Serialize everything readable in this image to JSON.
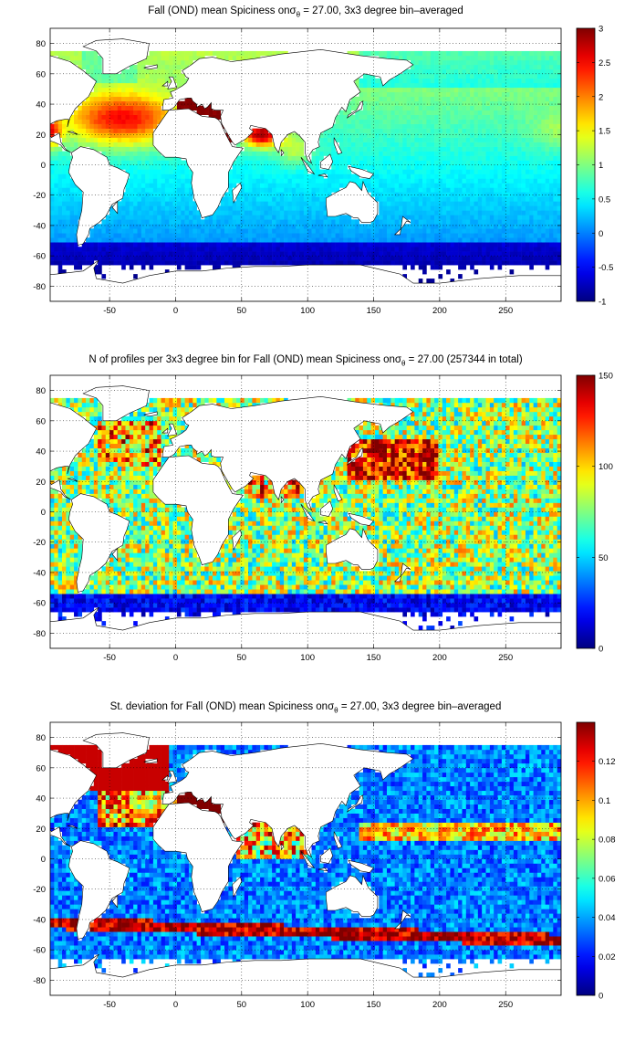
{
  "chart_data": [
    {
      "type": "heatmap",
      "title_prefix": "Fall (OND) mean Spiciness on",
      "title_sigma": "σ",
      "title_sub": "θ",
      "title_suffix": " = 27.00, 3x3 degree bin–averaged",
      "xticks": [
        -50,
        0,
        50,
        100,
        150,
        200,
        250
      ],
      "yticks": [
        80,
        60,
        40,
        20,
        0,
        -20,
        -40,
        -60,
        -80
      ],
      "xlim": [
        -95,
        292
      ],
      "ylim": [
        -90,
        90
      ],
      "colorbar_ticks": [
        3,
        2.5,
        2,
        1.5,
        1,
        0.5,
        0,
        -0.5,
        -1
      ],
      "colorbar_range": [
        -1,
        3
      ],
      "grid": true,
      "colormap": "jet",
      "field": "spice"
    },
    {
      "type": "heatmap",
      "title_prefix": "N of profiles per 3x3 degree bin for Fall (OND) mean Spiciness on",
      "title_sigma": "σ",
      "title_sub": "θ",
      "title_suffix": " = 27.00 (257344 in total)",
      "xticks": [
        -50,
        0,
        50,
        100,
        150,
        200,
        250
      ],
      "yticks": [
        80,
        60,
        40,
        20,
        0,
        -20,
        -40,
        -60,
        -80
      ],
      "xlim": [
        -95,
        292
      ],
      "ylim": [
        -90,
        90
      ],
      "colorbar_ticks": [
        150,
        100,
        50,
        0
      ],
      "colorbar_range": [
        0,
        150
      ],
      "grid": true,
      "colormap": "jet",
      "field": "count"
    },
    {
      "type": "heatmap",
      "title_prefix": "St. deviation for Fall (OND) mean Spiciness on",
      "title_sigma": "σ",
      "title_sub": "θ",
      "title_suffix": " = 27.00, 3x3 degree bin–averaged",
      "xticks": [
        -50,
        0,
        50,
        100,
        150,
        200,
        250
      ],
      "yticks": [
        80,
        60,
        40,
        20,
        0,
        -20,
        -40,
        -60,
        -80
      ],
      "xlim": [
        -95,
        292
      ],
      "ylim": [
        -90,
        90
      ],
      "colorbar_ticks": [
        0.12,
        0.1,
        0.08,
        0.06,
        0.04,
        0.02,
        0
      ],
      "colorbar_range": [
        0,
        0.14
      ],
      "grid": true,
      "colormap": "jet",
      "field": "std"
    }
  ]
}
